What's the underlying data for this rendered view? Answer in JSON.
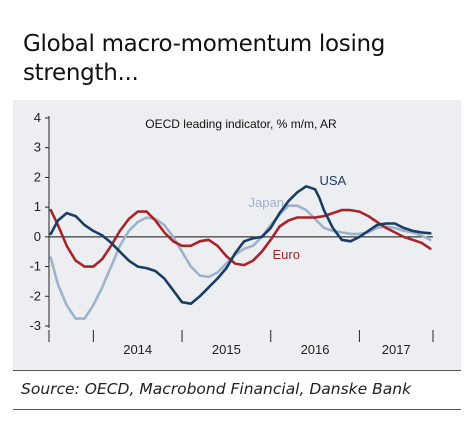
{
  "title": "Global macro-momentum losing strength...",
  "source": "Source: OECD, Macrobond Financial, Danske Bank",
  "chart_data": {
    "type": "line",
    "title": "",
    "annotation": "OECD leading indicator, % m/m, AR",
    "xlabel": "",
    "ylabel": "",
    "ylim": [
      -3,
      4
    ],
    "xlim": [
      2013.5,
      2017.83
    ],
    "yticks": [
      "4",
      "3",
      "2",
      "1",
      "0",
      "-1",
      "-2",
      "-3"
    ],
    "xticks": [
      "2014",
      "2015",
      "2016",
      "2017"
    ],
    "grid": false,
    "zero_line": true,
    "series": [
      {
        "name": "USA",
        "color": "#1a3d63",
        "x": [
          2013.52,
          2013.6,
          2013.7,
          2013.8,
          2013.9,
          2014.0,
          2014.1,
          2014.2,
          2014.3,
          2014.4,
          2014.5,
          2014.6,
          2014.7,
          2014.8,
          2014.9,
          2015.0,
          2015.1,
          2015.2,
          2015.3,
          2015.4,
          2015.5,
          2015.6,
          2015.7,
          2015.8,
          2015.9,
          2016.0,
          2016.1,
          2016.2,
          2016.3,
          2016.4,
          2016.5,
          2016.55,
          2016.6,
          2016.7,
          2016.8,
          2016.9,
          2017.0,
          2017.1,
          2017.2,
          2017.3,
          2017.4,
          2017.5,
          2017.6,
          2017.7,
          2017.8
        ],
        "y": [
          0.1,
          0.55,
          0.8,
          0.7,
          0.4,
          0.2,
          0.05,
          -0.2,
          -0.5,
          -0.8,
          -1.0,
          -1.05,
          -1.15,
          -1.4,
          -1.8,
          -2.2,
          -2.25,
          -2.0,
          -1.7,
          -1.4,
          -1.05,
          -0.55,
          -0.15,
          -0.05,
          0.0,
          0.3,
          0.8,
          1.2,
          1.5,
          1.7,
          1.6,
          1.3,
          0.9,
          0.3,
          -0.1,
          -0.15,
          0.0,
          0.2,
          0.4,
          0.45,
          0.45,
          0.3,
          0.2,
          0.15,
          0.12
        ]
      },
      {
        "name": "Japan",
        "color": "#9db3cc",
        "x": [
          2013.52,
          2013.6,
          2013.7,
          2013.8,
          2013.9,
          2014.0,
          2014.1,
          2014.2,
          2014.3,
          2014.4,
          2014.5,
          2014.6,
          2014.7,
          2014.8,
          2014.9,
          2015.0,
          2015.1,
          2015.2,
          2015.3,
          2015.4,
          2015.5,
          2015.6,
          2015.7,
          2015.8,
          2015.9,
          2016.0,
          2016.1,
          2016.2,
          2016.3,
          2016.4,
          2016.5,
          2016.6,
          2016.7,
          2016.8,
          2016.9,
          2017.0,
          2017.1,
          2017.2,
          2017.3,
          2017.4,
          2017.5,
          2017.6,
          2017.7,
          2017.8
        ],
        "y": [
          -0.7,
          -1.6,
          -2.3,
          -2.75,
          -2.75,
          -2.3,
          -1.7,
          -1.0,
          -0.3,
          0.2,
          0.5,
          0.65,
          0.6,
          0.4,
          0.0,
          -0.5,
          -1.0,
          -1.3,
          -1.35,
          -1.2,
          -0.9,
          -0.6,
          -0.4,
          -0.3,
          0.0,
          0.4,
          0.75,
          1.05,
          1.05,
          0.9,
          0.6,
          0.3,
          0.2,
          0.15,
          0.1,
          0.1,
          0.15,
          0.3,
          0.35,
          0.3,
          0.2,
          0.15,
          0.05,
          -0.1
        ]
      },
      {
        "name": "Euro",
        "color": "#a8242b",
        "x": [
          2013.52,
          2013.6,
          2013.7,
          2013.8,
          2013.9,
          2014.0,
          2014.1,
          2014.2,
          2014.3,
          2014.4,
          2014.5,
          2014.6,
          2014.7,
          2014.8,
          2014.9,
          2015.0,
          2015.1,
          2015.2,
          2015.3,
          2015.4,
          2015.5,
          2015.6,
          2015.7,
          2015.8,
          2015.9,
          2016.0,
          2016.1,
          2016.2,
          2016.3,
          2016.4,
          2016.5,
          2016.6,
          2016.7,
          2016.8,
          2016.9,
          2017.0,
          2017.1,
          2017.2,
          2017.3,
          2017.4,
          2017.5,
          2017.6,
          2017.7,
          2017.8
        ],
        "y": [
          0.9,
          0.4,
          -0.3,
          -0.8,
          -1.0,
          -1.0,
          -0.75,
          -0.3,
          0.2,
          0.6,
          0.85,
          0.85,
          0.55,
          0.15,
          -0.15,
          -0.3,
          -0.3,
          -0.15,
          -0.1,
          -0.3,
          -0.65,
          -0.9,
          -0.95,
          -0.8,
          -0.5,
          -0.1,
          0.35,
          0.55,
          0.65,
          0.65,
          0.65,
          0.7,
          0.8,
          0.9,
          0.9,
          0.85,
          0.7,
          0.5,
          0.3,
          0.15,
          0.0,
          -0.1,
          -0.2,
          -0.4
        ]
      }
    ]
  }
}
